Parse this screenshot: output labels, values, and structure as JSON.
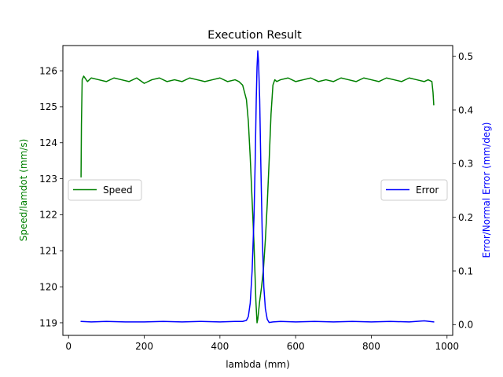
{
  "chart_data": {
    "type": "line",
    "title": "Execution Result",
    "xlabel": "lambda (mm)",
    "ylabel_left": "Speed/lamdot (mm/s)",
    "ylabel_right": "Error/Normal Error (mm/deg)",
    "xlim": [
      -15,
      1015
    ],
    "ylim_left": [
      118.65,
      126.7
    ],
    "ylim_right": [
      -0.02,
      0.52
    ],
    "xticks": [
      0,
      200,
      400,
      600,
      800,
      1000
    ],
    "yticks_left": [
      119,
      120,
      121,
      122,
      123,
      124,
      125,
      126
    ],
    "yticks_right": [
      0.0,
      0.1,
      0.2,
      0.3,
      0.4,
      0.5
    ],
    "grid": false,
    "colors": {
      "speed": "#008000",
      "error": "#0000ff"
    },
    "series": [
      {
        "name": "Speed",
        "axis": "left",
        "legend_position": "center-left",
        "x": [
          33,
          34,
          36,
          40,
          50,
          60,
          80,
          100,
          120,
          140,
          160,
          180,
          200,
          220,
          240,
          260,
          280,
          300,
          320,
          340,
          360,
          380,
          400,
          420,
          440,
          450,
          460,
          470,
          475,
          480,
          485,
          490,
          495,
          498,
          500,
          502,
          505,
          510,
          515,
          520,
          525,
          530,
          535,
          540,
          545,
          550,
          560,
          580,
          600,
          620,
          640,
          660,
          680,
          700,
          720,
          740,
          760,
          780,
          800,
          820,
          840,
          860,
          880,
          900,
          920,
          940,
          950,
          960,
          963,
          965
        ],
        "y": [
          123.05,
          124.5,
          125.75,
          125.85,
          125.7,
          125.8,
          125.75,
          125.7,
          125.8,
          125.75,
          125.7,
          125.8,
          125.65,
          125.75,
          125.8,
          125.7,
          125.75,
          125.7,
          125.8,
          125.75,
          125.7,
          125.75,
          125.8,
          125.7,
          125.75,
          125.7,
          125.6,
          125.2,
          124.6,
          123.6,
          122.4,
          121.2,
          119.6,
          119.0,
          119.1,
          119.3,
          119.6,
          120.0,
          120.5,
          121.3,
          122.3,
          123.5,
          124.8,
          125.6,
          125.75,
          125.7,
          125.75,
          125.8,
          125.7,
          125.75,
          125.8,
          125.7,
          125.75,
          125.7,
          125.8,
          125.75,
          125.7,
          125.8,
          125.75,
          125.7,
          125.8,
          125.75,
          125.7,
          125.8,
          125.75,
          125.7,
          125.75,
          125.7,
          125.4,
          125.05
        ]
      },
      {
        "name": "Error",
        "axis": "right",
        "legend_position": "center-right",
        "x": [
          33,
          60,
          100,
          150,
          200,
          250,
          300,
          350,
          400,
          440,
          460,
          470,
          475,
          480,
          485,
          490,
          493,
          496,
          498,
          500,
          502,
          505,
          508,
          512,
          516,
          520,
          525,
          530,
          540,
          560,
          600,
          650,
          700,
          750,
          800,
          850,
          900,
          940,
          965
        ],
        "y": [
          0.006,
          0.005,
          0.006,
          0.005,
          0.005,
          0.006,
          0.005,
          0.006,
          0.005,
          0.006,
          0.006,
          0.008,
          0.015,
          0.04,
          0.1,
          0.2,
          0.3,
          0.42,
          0.48,
          0.51,
          0.49,
          0.42,
          0.3,
          0.16,
          0.07,
          0.03,
          0.01,
          0.004,
          0.005,
          0.006,
          0.005,
          0.006,
          0.005,
          0.006,
          0.005,
          0.006,
          0.005,
          0.007,
          0.005
        ]
      }
    ]
  }
}
